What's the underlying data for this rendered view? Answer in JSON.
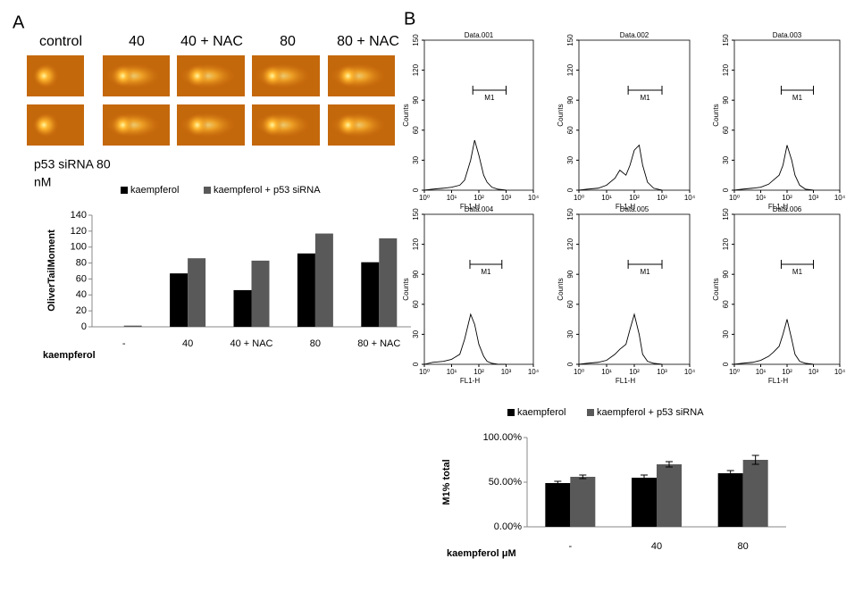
{
  "panel_labels": [
    "A",
    "B"
  ],
  "comet_labels": [
    "control",
    "40",
    "40 + NAC",
    "80",
    "80 + NAC"
  ],
  "comet_note": [
    "p53 siRNA 80",
    "nM"
  ],
  "chart_data": [
    {
      "type": "bar",
      "ylabel": "OliverTailMoment",
      "xlabel": "kaempferol",
      "categories": [
        "-",
        "40",
        "40 + NAC",
        "80",
        "80 + NAC"
      ],
      "series": [
        {
          "name": "kaempferol",
          "color": "#000000",
          "values": [
            0,
            67,
            46,
            92,
            81
          ]
        },
        {
          "name": "kaempferol + p53 siRNA",
          "color": "#595959",
          "values": [
            1.5,
            86,
            83,
            117,
            111
          ]
        }
      ],
      "ylim": [
        0,
        140
      ],
      "yticks": [
        0,
        20,
        40,
        60,
        80,
        100,
        120,
        140
      ]
    },
    {
      "type": "line",
      "title": "Data.001",
      "xlabel": "FL1-H",
      "ylabel": "Counts",
      "log_x": true,
      "color": "#000000",
      "x": [
        1,
        2,
        5,
        10,
        20,
        30,
        50,
        70,
        100,
        150,
        200,
        300,
        500,
        1000
      ],
      "values": [
        0,
        1,
        2,
        3,
        5,
        10,
        30,
        50,
        35,
        15,
        8,
        3,
        1,
        0
      ],
      "xlim": [
        1,
        10000
      ],
      "xticks": [
        {
          "value": 1,
          "label": "10⁰"
        },
        {
          "value": 10,
          "label": "10¹"
        },
        {
          "value": 100,
          "label": "10²"
        },
        {
          "value": 1000,
          "label": "10³"
        },
        {
          "value": 10000,
          "label": "10⁴"
        }
      ],
      "ylim": [
        0,
        150
      ],
      "yticks": [
        0,
        30,
        60,
        90,
        120,
        150
      ],
      "annotation": {
        "label": "M1",
        "range": [
          60,
          1000
        ],
        "y": 100
      }
    },
    {
      "type": "line",
      "title": "Data.002",
      "xlabel": "FL1-H",
      "ylabel": "Counts",
      "log_x": true,
      "color": "#000000",
      "x": [
        1,
        2,
        5,
        10,
        20,
        30,
        50,
        70,
        100,
        150,
        200,
        300,
        500,
        1000
      ],
      "values": [
        0,
        1,
        2,
        5,
        12,
        20,
        15,
        25,
        40,
        45,
        25,
        8,
        2,
        0
      ],
      "xlim": [
        1,
        10000
      ],
      "xticks": [
        {
          "value": 1,
          "label": "10⁰"
        },
        {
          "value": 10,
          "label": "10¹"
        },
        {
          "value": 100,
          "label": "10²"
        },
        {
          "value": 1000,
          "label": "10³"
        },
        {
          "value": 10000,
          "label": "10⁴"
        }
      ],
      "ylim": [
        0,
        150
      ],
      "yticks": [
        0,
        30,
        60,
        90,
        120,
        150
      ],
      "annotation": {
        "label": "M1",
        "range": [
          60,
          1000
        ],
        "y": 100
      }
    },
    {
      "type": "line",
      "title": "Data.003",
      "xlabel": "FL1-H",
      "ylabel": "Counts",
      "log_x": true,
      "color": "#000000",
      "x": [
        1,
        2,
        5,
        10,
        20,
        30,
        50,
        70,
        100,
        150,
        200,
        300,
        500,
        1000
      ],
      "values": [
        0,
        1,
        2,
        3,
        6,
        10,
        15,
        25,
        45,
        30,
        15,
        5,
        1,
        0
      ],
      "xlim": [
        1,
        10000
      ],
      "xticks": [
        {
          "value": 1,
          "label": "10⁰"
        },
        {
          "value": 10,
          "label": "10¹"
        },
        {
          "value": 100,
          "label": "10²"
        },
        {
          "value": 1000,
          "label": "10³"
        },
        {
          "value": 10000,
          "label": "10⁴"
        }
      ],
      "ylim": [
        0,
        150
      ],
      "yticks": [
        0,
        30,
        60,
        90,
        120,
        150
      ],
      "annotation": {
        "label": "M1",
        "range": [
          60,
          1000
        ],
        "y": 100
      }
    },
    {
      "type": "line",
      "title": "Data.004",
      "xlabel": "FL1-H",
      "ylabel": "Counts",
      "log_x": true,
      "color": "#000000",
      "x": [
        1,
        2,
        5,
        10,
        20,
        30,
        50,
        70,
        100,
        150,
        200,
        300,
        500,
        1000
      ],
      "values": [
        0,
        2,
        3,
        5,
        10,
        25,
        50,
        40,
        20,
        8,
        3,
        1,
        0,
        0
      ],
      "xlim": [
        1,
        10000
      ],
      "xticks": [
        {
          "value": 1,
          "label": "10⁰"
        },
        {
          "value": 10,
          "label": "10¹"
        },
        {
          "value": 100,
          "label": "10²"
        },
        {
          "value": 1000,
          "label": "10³"
        },
        {
          "value": 10000,
          "label": "10⁴"
        }
      ],
      "ylim": [
        0,
        150
      ],
      "yticks": [
        0,
        30,
        60,
        90,
        120,
        150
      ],
      "annotation": {
        "label": "M1",
        "range": [
          47,
          700
        ],
        "y": 100
      }
    },
    {
      "type": "line",
      "title": "Data.005",
      "xlabel": "FL1-H",
      "ylabel": "Counts",
      "log_x": true,
      "color": "#000000",
      "x": [
        1,
        2,
        5,
        10,
        20,
        30,
        50,
        70,
        100,
        150,
        200,
        300,
        500,
        1000
      ],
      "values": [
        0,
        1,
        2,
        4,
        10,
        15,
        20,
        35,
        50,
        30,
        10,
        3,
        1,
        0
      ],
      "xlim": [
        1,
        10000
      ],
      "xticks": [
        {
          "value": 1,
          "label": "10⁰"
        },
        {
          "value": 10,
          "label": "10¹"
        },
        {
          "value": 100,
          "label": "10²"
        },
        {
          "value": 1000,
          "label": "10³"
        },
        {
          "value": 10000,
          "label": "10⁴"
        }
      ],
      "ylim": [
        0,
        150
      ],
      "yticks": [
        0,
        30,
        60,
        90,
        120,
        150
      ],
      "annotation": {
        "label": "M1",
        "range": [
          60,
          1000
        ],
        "y": 100
      }
    },
    {
      "type": "line",
      "title": "Data.006",
      "xlabel": "FL1-H",
      "ylabel": "Counts",
      "log_x": true,
      "color": "#000000",
      "x": [
        1,
        2,
        5,
        10,
        20,
        30,
        50,
        70,
        100,
        150,
        200,
        300,
        500,
        1000
      ],
      "values": [
        0,
        1,
        2,
        4,
        8,
        12,
        18,
        30,
        45,
        25,
        10,
        3,
        1,
        0
      ],
      "xlim": [
        1,
        10000
      ],
      "xticks": [
        {
          "value": 1,
          "label": "10⁰"
        },
        {
          "value": 10,
          "label": "10¹"
        },
        {
          "value": 100,
          "label": "10²"
        },
        {
          "value": 1000,
          "label": "10³"
        },
        {
          "value": 10000,
          "label": "10⁴"
        }
      ],
      "ylim": [
        0,
        150
      ],
      "yticks": [
        0,
        30,
        60,
        90,
        120,
        150
      ],
      "annotation": {
        "label": "M1",
        "range": [
          60,
          1000
        ],
        "y": 100
      }
    },
    {
      "type": "bar",
      "ylabel": "M1% total",
      "xlabel": "kaempferol μM",
      "categories": [
        "-",
        "40",
        "80"
      ],
      "series": [
        {
          "name": "kaempferol",
          "color": "#000000",
          "values": [
            49,
            55,
            60
          ],
          "errors": [
            2,
            3,
            3
          ]
        },
        {
          "name": "kaempferol + p53 siRNA",
          "color": "#595959",
          "values": [
            56,
            70,
            75
          ],
          "errors": [
            2,
            3,
            5
          ]
        }
      ],
      "ylim": [
        0,
        100
      ],
      "yticks": [
        {
          "value": 0,
          "label": "0.00%"
        },
        {
          "value": 50,
          "label": "50.00%"
        },
        {
          "value": 100,
          "label": "100.00%"
        }
      ]
    }
  ]
}
